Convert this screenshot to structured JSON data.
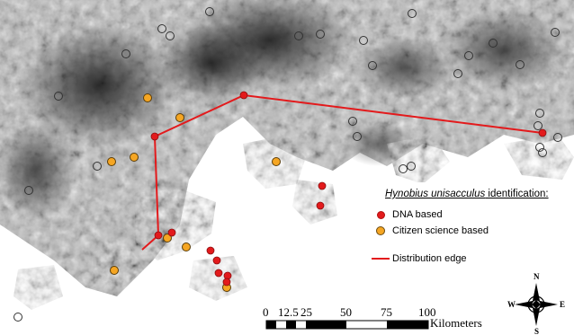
{
  "legend": {
    "title_italic": "Hynobius unisacculus",
    "title_rest": " identification:",
    "dna_label": "DNA based",
    "citizen_label": "Citizen science based",
    "edge_label": "Distribution edge"
  },
  "scale_bar": {
    "ticks": [
      "0",
      "12.5",
      "25",
      "50",
      "75",
      "100"
    ],
    "unit": "Kilometers"
  },
  "compass": {
    "n": "N",
    "s": "S",
    "e": "E",
    "w": "W"
  },
  "colors": {
    "dna": "#e31a1c",
    "citizen": "#f5a623",
    "edge": "#e31a1c",
    "terrain_dark": "#2a2a2a",
    "terrain_light": "#cfcfcf"
  }
}
